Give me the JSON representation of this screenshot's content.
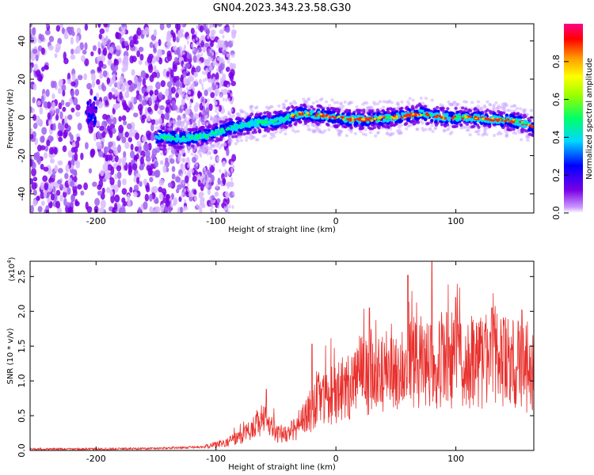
{
  "title": "GN04.2023.343.23.58.G30",
  "chart_data": [
    {
      "type": "heatmap",
      "xlabel": "Height of straight line (km)",
      "ylabel": "Frequency (Hz)",
      "xlim": [
        -255,
        165
      ],
      "ylim": [
        -50,
        49
      ],
      "xticks": [
        -200,
        -100,
        0,
        100
      ],
      "yticks": [
        -40,
        -20,
        0,
        20,
        40
      ],
      "colorbar": {
        "label": "Normalized spectral amplitude",
        "range": [
          0,
          1
        ],
        "ticks": [
          "0.0",
          "0.2",
          "0.4",
          "0.6",
          "0.8"
        ],
        "colors": [
          "#ffffff",
          "#cc99ff",
          "#7a00e6",
          "#0000ff",
          "#00d8ff",
          "#00ff66",
          "#99ff00",
          "#ffff00",
          "#ff9900",
          "#ff0000",
          "#ff0088"
        ]
      },
      "ridge": {
        "x": [
          -150,
          -130,
          -110,
          -90,
          -70,
          -50,
          -30,
          -10,
          10,
          30,
          50,
          70,
          90,
          110,
          130,
          150,
          165
        ],
        "y": [
          -10,
          -11,
          -10,
          -6,
          -3,
          -2,
          2,
          1,
          -1,
          -1,
          0,
          2,
          0,
          0,
          -1,
          -2,
          -5
        ]
      }
    },
    {
      "type": "line",
      "xlabel": "Height of straight line (km)",
      "ylabel": "SNR (10 * v/v)",
      "y_multiplier": "(x10",
      "y_multiplier_exp": "4",
      "y_multiplier_close": ")",
      "xlim": [
        -255,
        165
      ],
      "ylim": [
        0,
        2.72
      ],
      "xticks": [
        -200,
        -100,
        0,
        100
      ],
      "yticks": [
        "0.0",
        "0.5",
        "1.0",
        "1.5",
        "2.0",
        "2.5"
      ],
      "color": "#e8302c",
      "envelope": {
        "x": [
          -255,
          -200,
          -150,
          -110,
          -90,
          -75,
          -65,
          -60,
          -55,
          -50,
          -40,
          -30,
          -20,
          -15,
          -10,
          0,
          10,
          20,
          30,
          40,
          50,
          60,
          70,
          80,
          90,
          100,
          110,
          120,
          130,
          140,
          150,
          160,
          165
        ],
        "y": [
          0.02,
          0.02,
          0.03,
          0.05,
          0.12,
          0.25,
          0.4,
          0.45,
          0.35,
          0.25,
          0.25,
          0.35,
          0.6,
          0.8,
          0.75,
          0.85,
          0.95,
          1.05,
          1.1,
          1.15,
          1.2,
          1.25,
          1.25,
          1.3,
          1.3,
          1.25,
          1.25,
          1.3,
          1.3,
          1.25,
          1.25,
          1.2,
          1.2
        ]
      },
      "peaks": [
        {
          "x": -58,
          "y": 0.88
        },
        {
          "x": -20,
          "y": 1.53
        },
        {
          "x": 28,
          "y": 2.05
        },
        {
          "x": 60,
          "y": 2.52
        },
        {
          "x": 80,
          "y": 2.72
        },
        {
          "x": 100,
          "y": 2.2
        },
        {
          "x": 130,
          "y": 2.05
        },
        {
          "x": 155,
          "y": 2.02
        }
      ]
    }
  ]
}
